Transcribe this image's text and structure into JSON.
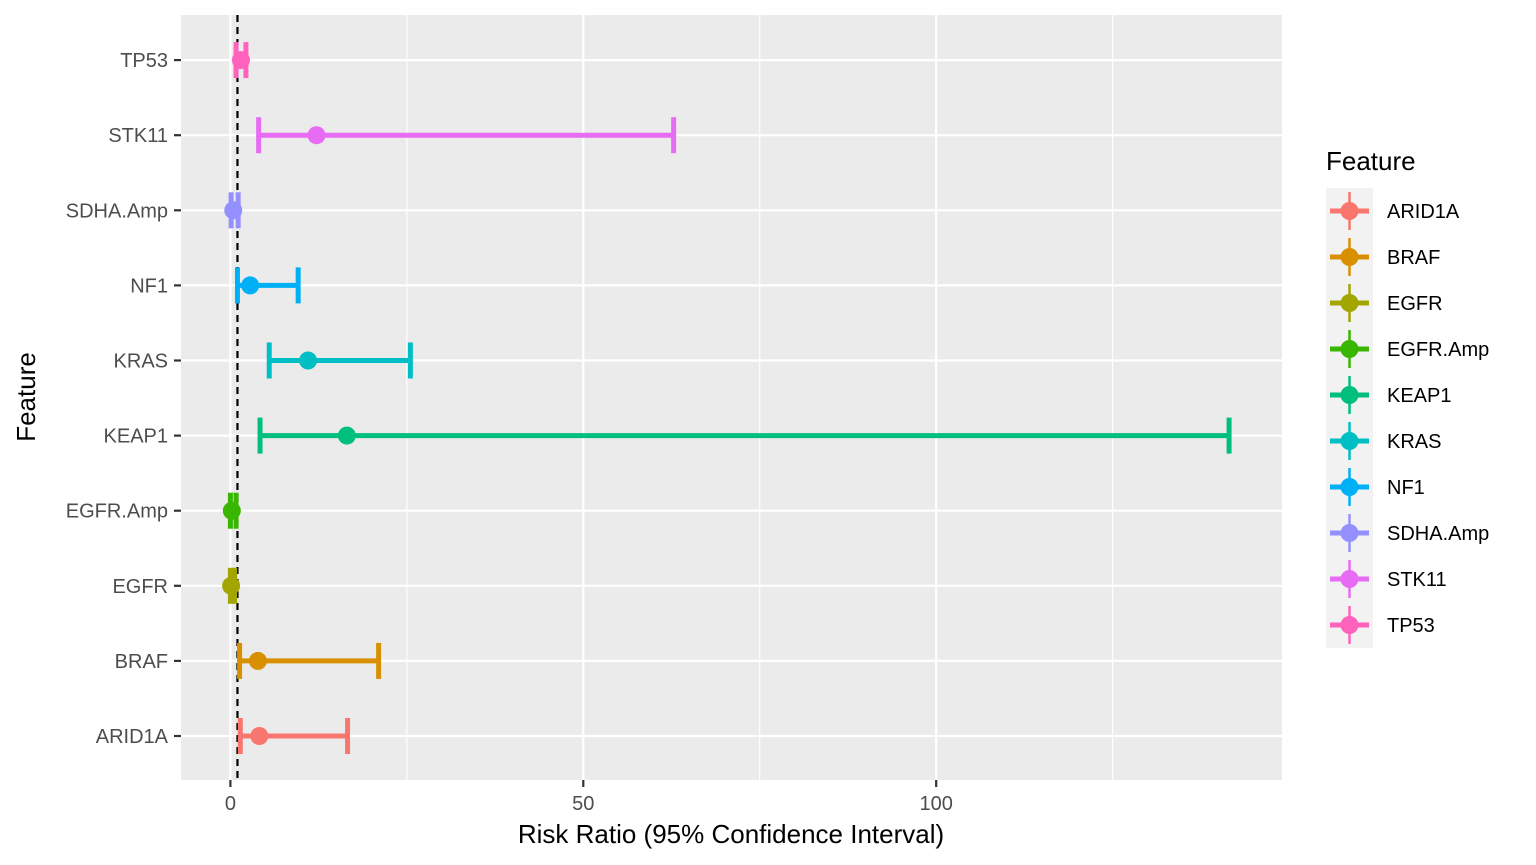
{
  "chart_data": {
    "type": "forest",
    "xlabel": "Risk Ratio (95% Confidence Interval)",
    "ylabel": "Feature",
    "xlim": [
      -7,
      149
    ],
    "x_ticks": [
      0,
      50,
      100
    ],
    "x_tick_labels": [
      "0",
      "50",
      "100"
    ],
    "reference_line": 1,
    "grid": true,
    "legend": {
      "title": "Feature",
      "position": "right"
    },
    "series": [
      {
        "name": "ARID1A",
        "estimate": 4.1,
        "lower": 1.4,
        "upper": 16.6,
        "color": "#F8766D"
      },
      {
        "name": "BRAF",
        "estimate": 3.9,
        "lower": 1.3,
        "upper": 21.0,
        "color": "#D89000"
      },
      {
        "name": "EGFR",
        "estimate": 0.1,
        "lower": 0.0,
        "upper": 0.6,
        "color": "#A3A500"
      },
      {
        "name": "EGFR.Amp",
        "estimate": 0.2,
        "lower": 0.0,
        "upper": 0.8,
        "color": "#39B600"
      },
      {
        "name": "KEAP1",
        "estimate": 16.5,
        "lower": 4.2,
        "upper": 141.5,
        "color": "#00BF7D"
      },
      {
        "name": "KRAS",
        "estimate": 11.0,
        "lower": 5.5,
        "upper": 25.5,
        "color": "#00BFC4"
      },
      {
        "name": "NF1",
        "estimate": 2.8,
        "lower": 1.0,
        "upper": 9.6,
        "color": "#00B0F6"
      },
      {
        "name": "SDHA.Amp",
        "estimate": 0.4,
        "lower": 0.1,
        "upper": 1.1,
        "color": "#9590FF"
      },
      {
        "name": "STK11",
        "estimate": 12.2,
        "lower": 4.0,
        "upper": 62.8,
        "color": "#E76BF3"
      },
      {
        "name": "TP53",
        "estimate": 1.5,
        "lower": 0.8,
        "upper": 2.2,
        "color": "#FF62BC"
      }
    ]
  }
}
